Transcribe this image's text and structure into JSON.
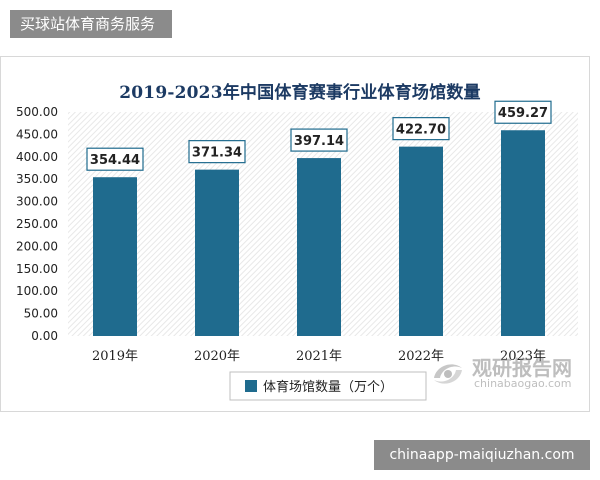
{
  "header": {
    "badge_text": "买球站体育商务服务"
  },
  "footer": {
    "badge_text": "chinaapp-maiqiuzhan.com"
  },
  "watermark": {
    "name_cn": "观研报告网",
    "name_en": "chinabaogao.com",
    "icon": "swirl-logo-icon"
  },
  "colors": {
    "bar": "#1f6b8e",
    "title": "#1c3a63",
    "label_border": "#1f6b8e",
    "badge_bg": "#8b8b8b"
  },
  "chart_data": {
    "type": "bar",
    "title": "2019-2023年中国体育赛事行业体育场馆数量",
    "categories": [
      "2019年",
      "2020年",
      "2021年",
      "2022年",
      "2023年"
    ],
    "series": [
      {
        "name": "体育场馆数量（万个）",
        "values": [
          354.44,
          371.34,
          397.14,
          422.7,
          459.27
        ]
      }
    ],
    "value_labels": [
      "354.44",
      "371.34",
      "397.14",
      "422.70",
      "459.27"
    ],
    "ylim": [
      0,
      500
    ],
    "ytick_values": [
      0,
      50,
      100,
      150,
      200,
      250,
      300,
      350,
      400,
      450,
      500
    ],
    "ytick_labels": [
      "0.00",
      "50.00",
      "100.00",
      "150.00",
      "200.00",
      "250.00",
      "300.00",
      "350.00",
      "400.00",
      "450.00",
      "500.00"
    ],
    "xlabel": "",
    "ylabel": "",
    "grid": false,
    "legend_position": "bottom"
  }
}
